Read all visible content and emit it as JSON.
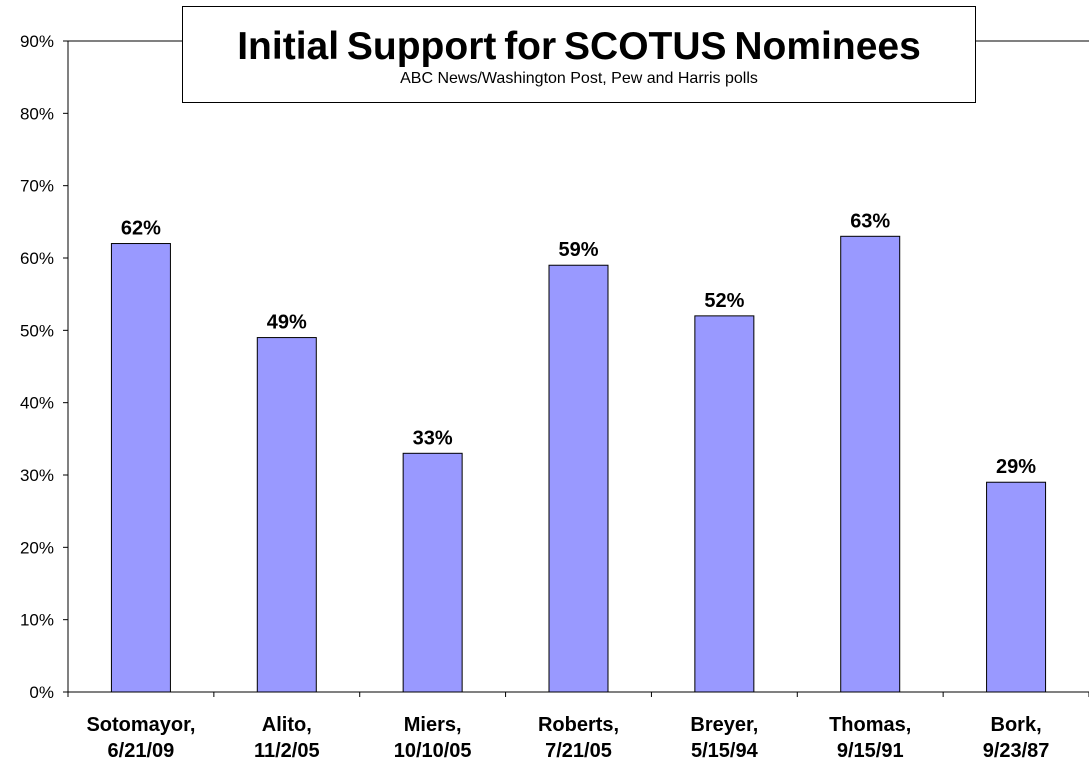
{
  "chart_data": {
    "type": "bar",
    "title": "Initial Support for SCOTUS Nominees",
    "subtitle": "ABC News/Washington Post, Pew and Harris polls",
    "categories": [
      [
        "Sotomayor,",
        "6/21/09"
      ],
      [
        "Alito,",
        "11/2/05"
      ],
      [
        "Miers,",
        "10/10/05"
      ],
      [
        "Roberts,",
        "7/21/05"
      ],
      [
        "Breyer,",
        "5/15/94"
      ],
      [
        "Thomas,",
        "9/15/91"
      ],
      [
        "Bork,",
        "9/23/87"
      ]
    ],
    "values": [
      62,
      49,
      33,
      59,
      52,
      63,
      29
    ],
    "data_labels": [
      "62%",
      "49%",
      "33%",
      "59%",
      "52%",
      "63%",
      "29%"
    ],
    "ylim": [
      0,
      90
    ],
    "y_ticks": [
      "0%",
      "10%",
      "20%",
      "30%",
      "40%",
      "50%",
      "60%",
      "70%",
      "80%",
      "90%"
    ],
    "grid": false,
    "legend": "none",
    "bar_color": "#9999ff",
    "bar_border_color": "#000000"
  }
}
